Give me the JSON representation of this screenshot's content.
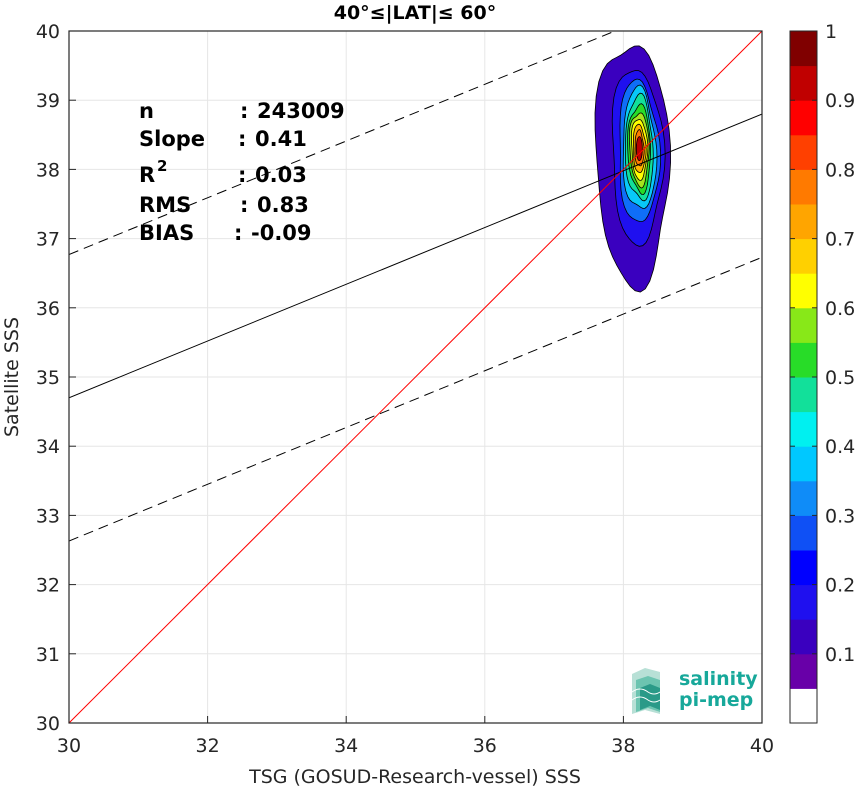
{
  "chart_data": {
    "type": "contour",
    "title": "40°≤|LAT|≤ 60°",
    "xlabel": "TSG (GOSUD-Research-vessel) SSS",
    "ylabel": "Satellite SSS",
    "xlim": [
      30,
      40
    ],
    "ylim": [
      30,
      40
    ],
    "xticks": [
      "30",
      "32",
      "34",
      "36",
      "38",
      "40"
    ],
    "yticks": [
      "30",
      "31",
      "32",
      "33",
      "34",
      "35",
      "36",
      "37",
      "38",
      "39",
      "40"
    ],
    "grid": true,
    "stats": [
      {
        "label": "n",
        "sep": ":",
        "value": "243009"
      },
      {
        "label": "Slope",
        "sep": ":",
        "value": "0.41"
      },
      {
        "label": "R",
        "sup": "2",
        "sep": ":",
        "value": "0.03"
      },
      {
        "label": "RMS",
        "sep": ":",
        "value": "0.83"
      },
      {
        "label": "BIAS",
        "sep": ":",
        "value": "-0.09"
      }
    ],
    "lines": {
      "one_to_one": {
        "points": [
          [
            30,
            30
          ],
          [
            40,
            40
          ]
        ],
        "color": "#ff0000"
      },
      "regression": {
        "points": [
          [
            30,
            34.7
          ],
          [
            40,
            38.8
          ]
        ],
        "color": "#000000"
      },
      "upper_bound": {
        "points": [
          [
            30,
            36.77
          ],
          [
            40,
            40.87
          ]
        ],
        "color": "#000000",
        "dash": true
      },
      "lower_bound": {
        "points": [
          [
            30,
            32.63
          ],
          [
            40,
            36.73
          ]
        ],
        "color": "#000000",
        "dash": true
      }
    },
    "density_levels": [
      {
        "level": 0.05,
        "color": "#3a00bf",
        "cx": 38.13,
        "cy": 38.1,
        "rx": 0.53,
        "ry": 1.75
      },
      {
        "level": 0.15,
        "color": "#1f10ef",
        "cx": 38.2,
        "cy": 38.2,
        "rx": 0.37,
        "ry": 1.27
      },
      {
        "level": 0.25,
        "color": "#0f6ef8",
        "cx": 38.22,
        "cy": 38.25,
        "rx": 0.29,
        "ry": 1.03
      },
      {
        "level": 0.35,
        "color": "#08c8f8",
        "cx": 38.23,
        "cy": 38.28,
        "rx": 0.24,
        "ry": 0.88
      },
      {
        "level": 0.45,
        "color": "#12e09a",
        "cx": 38.23,
        "cy": 38.3,
        "rx": 0.2,
        "ry": 0.75
      },
      {
        "level": 0.55,
        "color": "#28dc28",
        "cx": 38.23,
        "cy": 38.3,
        "rx": 0.165,
        "ry": 0.63
      },
      {
        "level": 0.62,
        "color": "#a6e41e",
        "cx": 38.23,
        "cy": 38.3,
        "rx": 0.14,
        "ry": 0.53
      },
      {
        "level": 0.68,
        "color": "#ffff00",
        "cx": 38.23,
        "cy": 38.3,
        "rx": 0.115,
        "ry": 0.44
      },
      {
        "level": 0.73,
        "color": "#ffb400",
        "cx": 38.23,
        "cy": 38.3,
        "rx": 0.09,
        "ry": 0.35
      },
      {
        "level": 0.78,
        "color": "#ff7a00",
        "cx": 38.23,
        "cy": 38.3,
        "rx": 0.065,
        "ry": 0.26
      },
      {
        "level": 0.85,
        "color": "#f03000",
        "cx": 38.23,
        "cy": 38.3,
        "rx": 0.04,
        "ry": 0.16
      }
    ],
    "colorbar": {
      "range": [
        0,
        1
      ],
      "ticks": [
        "0.1",
        "0.2",
        "0.3",
        "0.4",
        "0.5",
        "0.6",
        "0.7",
        "0.8",
        "0.9",
        "1"
      ],
      "colors": [
        "#ffffff",
        "#6800a8",
        "#3a00bf",
        "#1f10ef",
        "#0000ff",
        "#0f50f5",
        "#0f8cf8",
        "#00c8ff",
        "#00f0f0",
        "#12e09a",
        "#28dc28",
        "#88e818",
        "#ffff00",
        "#ffd000",
        "#ffa500",
        "#ff7a00",
        "#ff4000",
        "#ff0000",
        "#c00000",
        "#800000"
      ]
    }
  },
  "logo": {
    "line1": "salinity",
    "line2": "pi-mep",
    "color": "#17a89a"
  }
}
